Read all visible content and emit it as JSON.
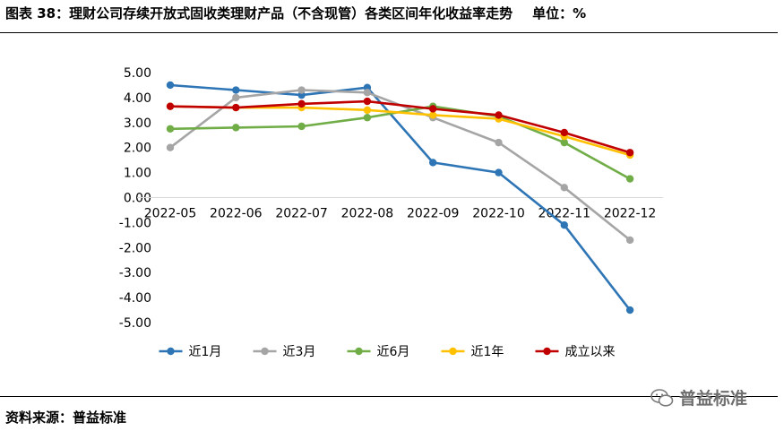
{
  "figure": {
    "title": "图表 38：理财公司存续开放式固收类理财产品（不含现管）各类区间年化收益率走势",
    "unit": "单位：%",
    "source": "资料来源：普益标准",
    "watermark": "普益标准"
  },
  "chart_data": {
    "type": "line",
    "categories": [
      "2022-05",
      "2022-06",
      "2022-07",
      "2022-08",
      "2022-09",
      "2022-10",
      "2022-11",
      "2022-12"
    ],
    "ylim": [
      -5,
      5
    ],
    "ytick_step": 1,
    "ytick_labels": [
      "5.00",
      "4.00",
      "3.00",
      "2.00",
      "1.00",
      "0.00",
      "-1.00",
      "-2.00",
      "-3.00",
      "-4.00",
      "-5.00"
    ],
    "xlabel": "",
    "ylabel": "",
    "grid": false,
    "legend_position": "bottom",
    "series": [
      {
        "name": "近1月",
        "color": "#2e75b6",
        "values": [
          4.5,
          4.3,
          4.1,
          4.4,
          1.4,
          1.0,
          -1.1,
          -4.5
        ]
      },
      {
        "name": "近3月",
        "color": "#a5a5a5",
        "values": [
          2.0,
          4.0,
          4.3,
          4.2,
          3.2,
          2.2,
          0.4,
          -1.7
        ]
      },
      {
        "name": "近6月",
        "color": "#70ad47",
        "values": [
          2.75,
          2.8,
          2.85,
          3.2,
          3.65,
          3.25,
          2.2,
          0.75
        ]
      },
      {
        "name": "近1年",
        "color": "#ffc000",
        "values": [
          3.65,
          3.6,
          3.6,
          3.5,
          3.3,
          3.15,
          2.45,
          1.7
        ]
      },
      {
        "name": "成立以来",
        "color": "#c00000",
        "values": [
          3.65,
          3.6,
          3.75,
          3.85,
          3.55,
          3.3,
          2.6,
          1.8
        ]
      }
    ]
  }
}
